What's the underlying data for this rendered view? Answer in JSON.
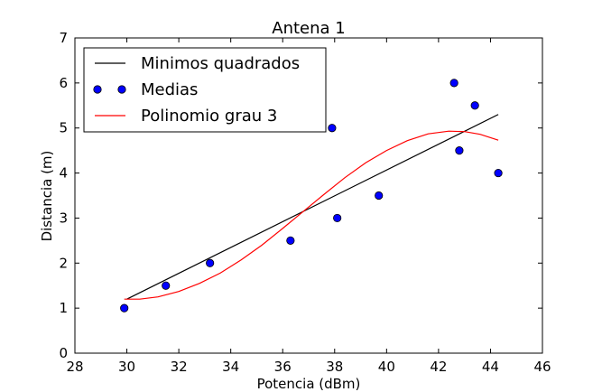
{
  "chart_data": {
    "type": "scatter",
    "title": "Antena 1",
    "xlabel": "Potencia (dBm)",
    "ylabel": "Distancia (m)",
    "xlim": [
      28,
      46
    ],
    "ylim": [
      0,
      7
    ],
    "xticks": [
      28,
      30,
      32,
      34,
      36,
      38,
      40,
      42,
      44,
      46
    ],
    "yticks": [
      0,
      1,
      2,
      3,
      4,
      5,
      6,
      7
    ],
    "grid": false,
    "legend_position": "top-left",
    "series": [
      {
        "name": "Minimos quadrados",
        "kind": "line",
        "color": "#000000",
        "x": [
          30.0,
          44.3
        ],
        "y": [
          1.2,
          5.3
        ]
      },
      {
        "name": "Medias",
        "kind": "points",
        "color": "#0000ff",
        "x": [
          29.9,
          31.5,
          33.2,
          36.3,
          37.9,
          38.1,
          39.7,
          42.6,
          42.8,
          43.4,
          44.3
        ],
        "y": [
          1.0,
          1.5,
          2.0,
          2.5,
          5.0,
          3.0,
          3.5,
          6.0,
          4.5,
          5.5,
          4.0
        ]
      },
      {
        "name": "Polinomio grau 3",
        "kind": "curve",
        "color": "#ff0000",
        "x": [
          29.9,
          30.5,
          31.2,
          32.0,
          32.8,
          33.6,
          34.4,
          35.2,
          36.0,
          36.8,
          37.6,
          38.4,
          39.2,
          40.0,
          40.8,
          41.6,
          42.4,
          43.0,
          43.6,
          44.3
        ],
        "y": [
          1.2,
          1.2,
          1.25,
          1.37,
          1.55,
          1.78,
          2.07,
          2.4,
          2.77,
          3.15,
          3.53,
          3.9,
          4.23,
          4.5,
          4.72,
          4.87,
          4.93,
          4.92,
          4.86,
          4.73
        ]
      }
    ]
  }
}
